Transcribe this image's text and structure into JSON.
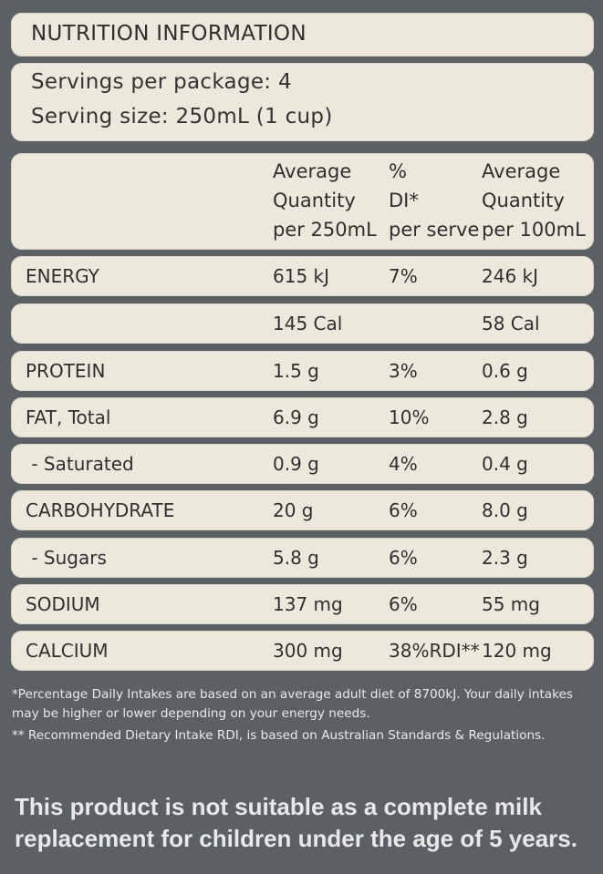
{
  "title": "NUTRITION INFORMATION",
  "servings_per_package": "Servings per package: 4",
  "serving_size": "Serving size: 250mL (1 cup)",
  "columns": {
    "per_serve": "Average\nQuantity\nper 250mL",
    "di": "%\nDI*\nper serve",
    "per_100": "Average\nQuantity\nper 100mL"
  },
  "rows": [
    {
      "name": "ENERGY",
      "serve": "615 kJ",
      "di": "7%",
      "per100": "246 kJ"
    },
    {
      "name": "",
      "serve": "145 Cal",
      "di": "",
      "per100": "58 Cal"
    },
    {
      "name": "PROTEIN",
      "serve": "1.5 g",
      "di": "3%",
      "per100": "0.6 g"
    },
    {
      "name": "FAT, Total",
      "serve": "6.9 g",
      "di": "10%",
      "per100": "2.8 g"
    },
    {
      "name": " - Saturated",
      "serve": "0.9 g",
      "di": "4%",
      "per100": "0.4 g"
    },
    {
      "name": "CARBOHYDRATE",
      "serve": "20 g",
      "di": "6%",
      "per100": "8.0 g"
    },
    {
      "name": " - Sugars",
      "serve": "5.8 g",
      "di": "6%",
      "per100": "2.3 g"
    },
    {
      "name": "SODIUM",
      "serve": "137 mg",
      "di": "6%",
      "per100": "55 mg"
    },
    {
      "name": "CALCIUM",
      "serve": "300 mg",
      "di": "38%RDI**",
      "per100": "120 mg"
    }
  ],
  "footnotes": {
    "di_note": "*Percentage Daily Intakes are based on an average adult diet of 8700kJ. Your daily intakes may be higher or lower depending on your energy needs.",
    "rdi_note": "** Recommended Dietary Intake RDI, is based on Australian Standards & Regulations."
  },
  "warning": "This product is not suitable as a complete milk replacement for children under the age of 5 years."
}
